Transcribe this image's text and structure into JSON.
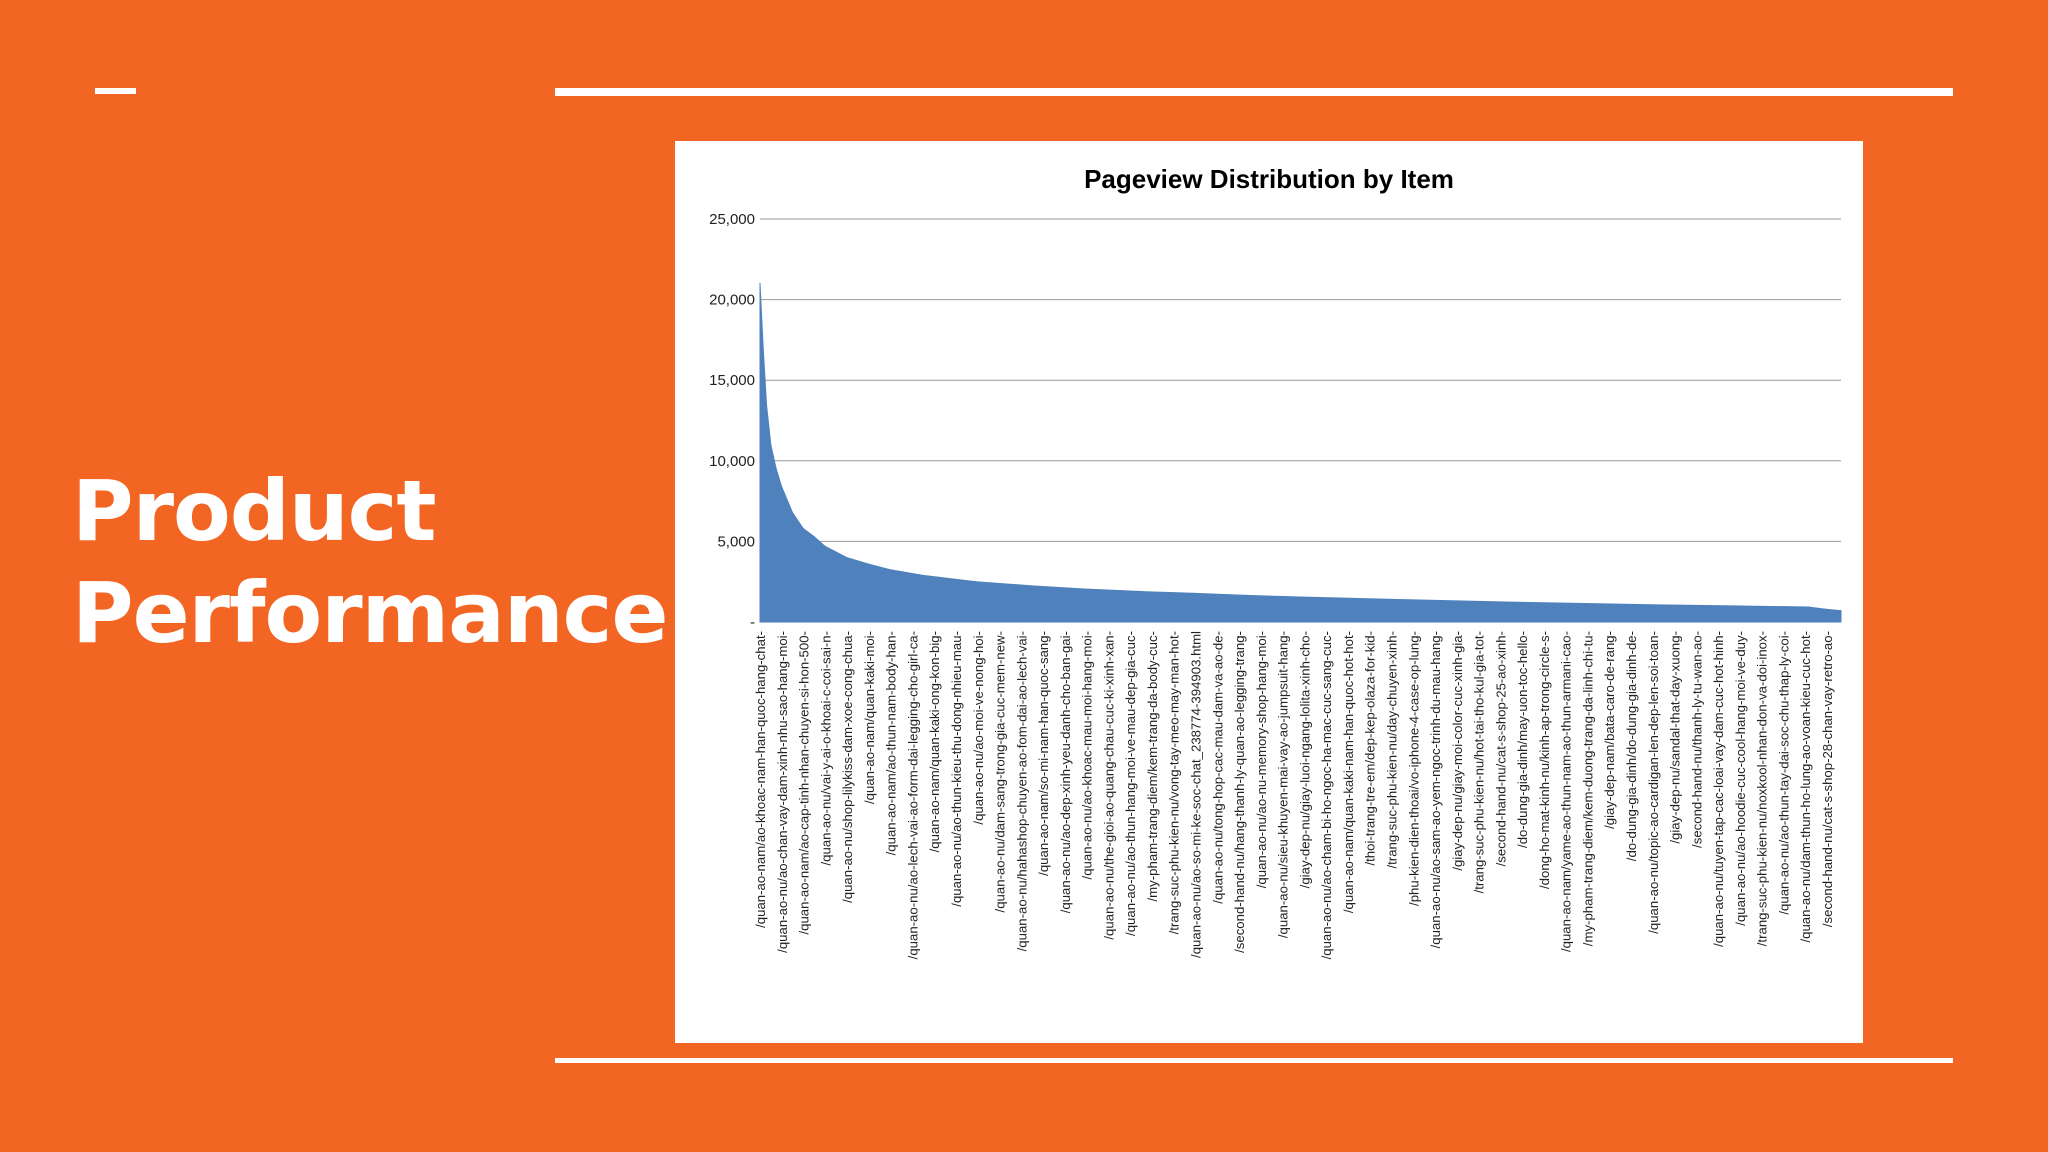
{
  "slide": {
    "title_line1": "Product",
    "title_line2": "Performance"
  },
  "colors": {
    "background": "#f26522",
    "accent": "#ffffff",
    "series": "#4f81bd"
  },
  "chart_data": {
    "type": "area",
    "title": "Pageview Distribution by Item",
    "xlabel": "",
    "ylabel": "",
    "ylim": [
      0,
      25000
    ],
    "yticks": [
      {
        "value": 0,
        "label": "-"
      },
      {
        "value": 5000,
        "label": "5,000"
      },
      {
        "value": 10000,
        "label": "10,000"
      },
      {
        "value": 15000,
        "label": "15,000"
      },
      {
        "value": 20000,
        "label": "20,000"
      },
      {
        "value": 25000,
        "label": "25,000"
      }
    ],
    "grid": true,
    "legend": "none",
    "x_tick_labels": [
      "/quan-ao-nam/ao-khoac-nam-han-quoc-hang-chat-",
      "/quan-ao-nu/ao-chan-vay-dam-xinh-nhu-sao-hang-moi-",
      "/quan-ao-nam/ao-cap-tinh-nhan-chuyen-si-hon-500-",
      "/quan-ao-nu/vai-y-ai-o-khoai-c-coi-sai-n-",
      "/quan-ao-nu/shop-lilykiss-dam-xoe-cong-chua-",
      "/quan-ao-nam/quan-kaki-moi-",
      "/quan-ao-nam/ao-thun-nam-body-han-",
      "/quan-ao-nu/ao-lech-vai-ao-form-dai-legging-cho-girl-ca-",
      "/quan-ao-nam/quan-kaki-ong-kon-big-",
      "/quan-ao-nu/ao-thun-kieu-thu-dong-nhieu-mau-",
      "/quan-ao-nu/ao-moi-ve-nong-hoi-",
      "/quan-ao-nu/dam-sang-trong-gia-cuc-mem-new-",
      "/quan-ao-nu/hahashop-chuyen-ao-fom-dai-ao-lech-vai-",
      "/quan-ao-nam/so-mi-nam-han-quoc-sang-",
      "/quan-ao-nu/ao-dep-xinh-yeu-danh-cho-ban-gai-",
      "/quan-ao-nu/ao-khoac-mau-moi-hang-moi-",
      "/quan-ao-nu/the-gioi-ao-quang-chau-cuc-ki-xinh-xan-",
      "/quan-ao-nu/ao-thun-hang-moi-ve-mau-dep-gia-cuc-",
      "/my-pham-trang-diem/kem-trang-da-body-cuc-",
      "/trang-suc-phu-kien-nu/vong-tay-meo-may-man-hot-",
      "/quan-ao-nu/ao-so-mi-ke-soc-chat_238774-394903.html",
      "/quan-ao-nu/tong-hop-cac-mau-dam-va-ao-de-",
      "/second-hand-nu/hang-thanh-ly-quan-ao-legging-trang-",
      "/quan-ao-nu/ao-nu-memory-shop-hang-moi-",
      "/quan-ao-nu/sieu-khuyen-mai-vay-ao-jumpsuit-hang-",
      "/giay-dep-nu/giay-luoi-ngang-lolita-xinh-cho-",
      "/quan-ao-nu/ao-cham-bi-ho-ngoc-ha-mac-cuc-sang-cuc-",
      "/quan-ao-nam/quan-kaki-nam-han-quoc-hot-hot-",
      "/thoi-trang-tre-em/dep-kep-olaza-for-kid-",
      "/trang-suc-phu-kien-nu/day-chuyen-xinh-",
      "/phu-kien-dien-thoai/vo-iphone-4-case-op-lung-",
      "/quan-ao-nu/ao-sam-ao-yem-ngoc-trinh-du-mau-hang-",
      "/giay-dep-nu/giay-moi-color-cuc-xinh-gia-",
      "/trang-suc-phu-kien-nu/hot-tai-tho-kul-gia-tot-",
      "/second-hand-nu/cat-s-shop-25-ao-xinh-",
      "/do-dung-gia-dinh/may-uon-toc-hello-",
      "/dong-ho-mat-kinh-nu/kinh-ap-trong-circle-s-",
      "/quan-ao-nam/yame-ao-thun-nam-ao-thun-armani-cao-",
      "/my-pham-trang-diem/kem-duong-trang-da-linh-chi-tu-",
      "/giay-dep-nam/bata-caro-de-rang-",
      "/do-dung-gia-dinh/do-dung-gia-dinh-de-",
      "/quan-ao-nu/topic-ao-cardigan-len-dep-len-soi-toan-",
      "/giay-dep-nu/sandal-that-day-xuong-",
      "/second-hand-nu/thanh-ly-tu-wan-ao-",
      "/quan-ao-nu/tuyen-tap-cac-loai-vay-dam-cuc-hot-hinh-",
      "/quan-ao-nu/ao-hoodie-cuc-cool-hang-moi-ve-duy-",
      "/trang-suc-phu-kien-nu/noxkool-nhan-don-va-doi-inox-",
      "/quan-ao-nu/ao-thun-tay-dai-soc-chu-thap-ly-coi-",
      "/quan-ao-nu/dam-thun-ho-lung-ao-voan-kieu-cuc-hot-",
      "/second-hand-nu/cat-s-shop-28-chan-vay-retro-ao-"
    ],
    "x": [
      0,
      0.003,
      0.006,
      0.01,
      0.015,
      0.02,
      0.03,
      0.04,
      0.05,
      0.06,
      0.08,
      0.1,
      0.12,
      0.15,
      0.2,
      0.25,
      0.3,
      0.35,
      0.4,
      0.45,
      0.5,
      0.6,
      0.7,
      0.8,
      0.9,
      0.97,
      0.985,
      1.0
    ],
    "series": [
      {
        "values": [
          21000,
          17000,
          13500,
          11000,
          9500,
          8400,
          6800,
          5800,
          5300,
          4700,
          4000,
          3600,
          3250,
          2900,
          2500,
          2250,
          2050,
          1900,
          1780,
          1650,
          1550,
          1380,
          1230,
          1100,
          1000,
          930,
          800,
          700
        ]
      }
    ]
  }
}
